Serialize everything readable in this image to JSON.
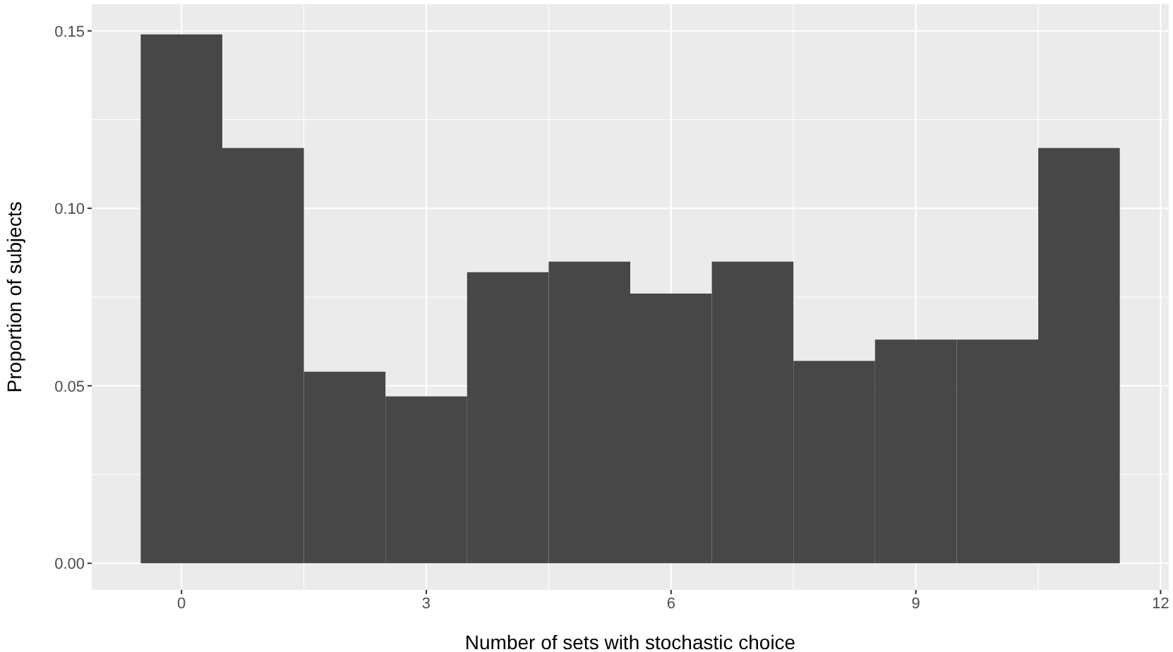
{
  "chart_data": {
    "type": "histogram",
    "xlabel": "Number of sets with stochastic choice",
    "ylabel": "Proportion of subjects",
    "bins": [
      -0.5,
      0.5,
      1.5,
      2.5,
      3.5,
      4.5,
      5.5,
      6.5,
      7.5,
      8.5,
      9.5,
      10.5,
      11.5
    ],
    "values": [
      0.149,
      0.117,
      0.054,
      0.047,
      0.082,
      0.085,
      0.076,
      0.085,
      0.057,
      0.063,
      0.063,
      0.117
    ],
    "color": "#474747",
    "xlim": [
      -1.1,
      12.1
    ],
    "xticks": [
      0,
      3,
      6,
      9,
      12
    ],
    "ylim": [
      -0.0075,
      0.1575
    ],
    "yticks": [
      {
        "value": 0,
        "label": "0.00"
      },
      {
        "value": 0.05,
        "label": "0.05"
      },
      {
        "value": 0.1,
        "label": "0.10"
      },
      {
        "value": 0.15,
        "label": "0.15"
      }
    ],
    "grid": true
  }
}
